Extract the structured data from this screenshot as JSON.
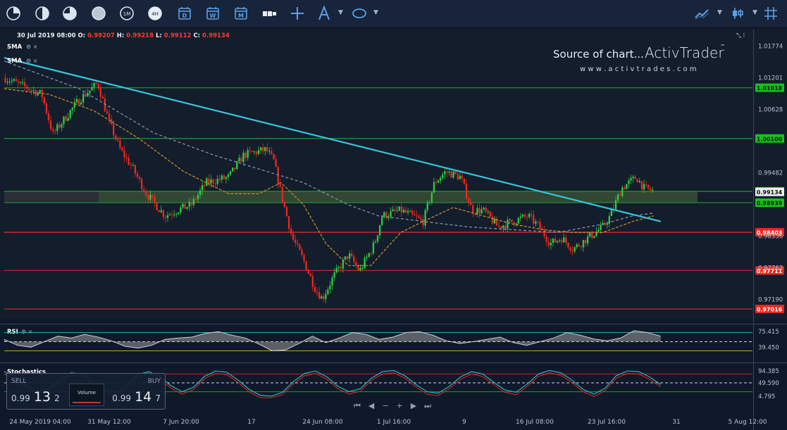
{
  "toolbar": {
    "left_tools": [
      {
        "icon": "clock-quarter-icon"
      },
      {
        "icon": "clock-half-icon"
      },
      {
        "icon": "clock-three-quarter-icon"
      },
      {
        "icon": "clock-full-icon"
      },
      {
        "icon": "timeframe-1m-icon",
        "label": "1M"
      },
      {
        "icon": "timeframe-4h-icon",
        "label": "4H"
      },
      {
        "icon": "daily-calendar-icon",
        "label": "D"
      },
      {
        "icon": "weekly-calendar-icon",
        "label": "W"
      },
      {
        "icon": "monthly-calendar-icon",
        "label": "M"
      },
      {
        "icon": "candle-type-icon"
      },
      {
        "icon": "crosshair-icon"
      },
      {
        "icon": "drawing-tools-icon"
      },
      {
        "icon": "ellipse-shape-icon"
      }
    ],
    "right_tools": [
      {
        "icon": "indicator-line-icon"
      },
      {
        "icon": "chart-type-icon"
      },
      {
        "icon": "grid-icon"
      }
    ]
  },
  "header": {
    "datetime": "30 Jul 2019 08:00",
    "open_label": "O:",
    "open": "0.99207",
    "high_label": "H:",
    "high": "0.99218",
    "low_label": "L:",
    "low": "0.99112",
    "close_label": "C:",
    "close": "0.99134"
  },
  "indicators_overlay": [
    "SMA",
    "SMA"
  ],
  "watermark": {
    "line1": "Source of chart...",
    "brand": "ActivTrader",
    "tm": "™",
    "url": "w w w . a c t i v t r a d e s . c o m"
  },
  "trade_panel": {
    "sell_label": "SELL",
    "sell_small": "0.99",
    "sell_big": "13",
    "sell_sup": "2",
    "buy_label": "BUY",
    "buy_small": "0.99",
    "buy_big": "14",
    "buy_sup": "7",
    "volume_label": "Volume"
  },
  "nav_buttons": [
    "⏮",
    "◀",
    "−",
    "+",
    "▶",
    "⏭"
  ],
  "colors": {
    "background": "#0f1929",
    "up": "#2ecc40",
    "down": "#e8281e",
    "trendline": "#35c6d9",
    "green_level": "#1e9b2e",
    "red_level": "#c0272d",
    "sma_fast": "#c08a2c",
    "sma_slow": "#8090b0",
    "rsi_line": "#cfcfcf",
    "stoch_k": "#2ab5c8"
  },
  "chart_data": [
    {
      "type": "candlestick",
      "title": "",
      "x_tick_labels": [
        "24 May 2019 04:00",
        "31 May 12:00",
        "7 Jun 20:00",
        "17",
        "24 Jun 08:00",
        "1 Jul 16:00",
        "9",
        "16 Jul 08:00",
        "23 Jul 16:00",
        "31",
        "5 Aug 12:00"
      ],
      "y_tick_labels": [
        "1.01774",
        "1.01201",
        "1.00628",
        "0.99482",
        "0.98336",
        "0.97763",
        "0.97190"
      ],
      "ylim": [
        0.9685,
        1.0202
      ],
      "horizontal_levels": [
        {
          "value": 1.01018,
          "label": "1.01018",
          "color": "green"
        },
        {
          "value": 1.001,
          "label": "1.00100",
          "color": "green"
        },
        {
          "value": 0.99144,
          "label": "0.99144",
          "color": "green"
        },
        {
          "value": 0.98939,
          "label": "0.98939",
          "color": "green"
        },
        {
          "value": 0.98403,
          "label": "0.98403",
          "color": "red"
        },
        {
          "value": 0.97711,
          "label": "0.97711",
          "color": "red"
        },
        {
          "value": 0.97016,
          "label": "0.97016",
          "color": "red"
        }
      ],
      "zone": {
        "from": 0.98939,
        "to": 0.99144
      },
      "trendline": [
        {
          "x": 0.0,
          "y": 1.0156
        },
        {
          "x": 0.868,
          "y": 0.9865
        }
      ],
      "close_path": [
        [
          0.0,
          1.012
        ],
        [
          0.05,
          1.009
        ],
        [
          0.065,
          1.0018
        ],
        [
          0.1,
          1.008
        ],
        [
          0.125,
          1.011
        ],
        [
          0.14,
          1.004
        ],
        [
          0.155,
          0.999
        ],
        [
          0.17,
          0.996
        ],
        [
          0.19,
          0.991
        ],
        [
          0.215,
          0.987
        ],
        [
          0.23,
          0.988
        ],
        [
          0.25,
          0.989
        ],
        [
          0.27,
          0.993
        ],
        [
          0.3,
          0.994
        ],
        [
          0.32,
          0.998
        ],
        [
          0.35,
          0.999
        ],
        [
          0.36,
          0.997
        ],
        [
          0.37,
          0.991
        ],
        [
          0.385,
          0.983
        ],
        [
          0.4,
          0.979
        ],
        [
          0.415,
          0.974
        ],
        [
          0.425,
          0.972
        ],
        [
          0.44,
          0.976
        ],
        [
          0.46,
          0.98
        ],
        [
          0.475,
          0.977
        ],
        [
          0.495,
          0.982
        ],
        [
          0.505,
          0.987
        ],
        [
          0.53,
          0.988
        ],
        [
          0.56,
          0.986
        ],
        [
          0.575,
          0.993
        ],
        [
          0.59,
          0.995
        ],
        [
          0.61,
          0.994
        ],
        [
          0.625,
          0.988
        ],
        [
          0.64,
          0.988
        ],
        [
          0.66,
          0.985
        ],
        [
          0.68,
          0.986
        ],
        [
          0.7,
          0.987
        ],
        [
          0.715,
          0.985
        ],
        [
          0.73,
          0.982
        ],
        [
          0.745,
          0.983
        ],
        [
          0.76,
          0.981
        ],
        [
          0.78,
          0.983
        ],
        [
          0.8,
          0.985
        ],
        [
          0.81,
          0.987
        ],
        [
          0.825,
          0.992
        ],
        [
          0.845,
          0.994
        ],
        [
          0.855,
          0.992
        ],
        [
          0.868,
          0.9915
        ]
      ],
      "sma_fast": [
        [
          0.0,
          1.01
        ],
        [
          0.06,
          1.009
        ],
        [
          0.12,
          1.006
        ],
        [
          0.18,
          1.001
        ],
        [
          0.24,
          0.995
        ],
        [
          0.3,
          0.991
        ],
        [
          0.34,
          0.991
        ],
        [
          0.37,
          0.993
        ],
        [
          0.4,
          0.989
        ],
        [
          0.43,
          0.982
        ],
        [
          0.46,
          0.978
        ],
        [
          0.49,
          0.978
        ],
        [
          0.51,
          0.981
        ],
        [
          0.53,
          0.984
        ],
        [
          0.56,
          0.986
        ],
        [
          0.6,
          0.9885
        ],
        [
          0.64,
          0.987
        ],
        [
          0.68,
          0.9855
        ],
        [
          0.72,
          0.9845
        ],
        [
          0.76,
          0.984
        ],
        [
          0.8,
          0.984
        ],
        [
          0.84,
          0.986
        ],
        [
          0.868,
          0.987
        ]
      ],
      "sma_slow": [
        [
          0.0,
          1.015
        ],
        [
          0.1,
          1.01
        ],
        [
          0.2,
          1.002
        ],
        [
          0.28,
          0.998
        ],
        [
          0.34,
          0.9955
        ],
        [
          0.4,
          0.993
        ],
        [
          0.46,
          0.989
        ],
        [
          0.5,
          0.987
        ],
        [
          0.56,
          0.986
        ],
        [
          0.62,
          0.985
        ],
        [
          0.68,
          0.9845
        ],
        [
          0.74,
          0.984
        ],
        [
          0.8,
          0.9855
        ],
        [
          0.84,
          0.987
        ],
        [
          0.868,
          0.9875
        ]
      ],
      "last_price": 0.99134
    },
    {
      "type": "line",
      "name": "RSI",
      "y_tick_labels": [
        "75.415",
        "39.450"
      ],
      "upper_level": 70,
      "lower_level": 30,
      "mid_level": 50,
      "values": [
        55,
        42,
        38,
        50,
        62,
        58,
        66,
        60,
        52,
        40,
        36,
        42,
        55,
        58,
        60,
        68,
        72,
        64,
        58,
        45,
        30,
        32,
        46,
        62,
        48,
        58,
        70,
        66,
        55,
        60,
        70,
        72,
        64,
        52,
        46,
        50,
        55,
        60,
        48,
        42,
        50,
        58,
        70,
        64,
        56,
        52,
        58,
        74,
        70,
        62
      ]
    },
    {
      "type": "line",
      "name": "Stochastics",
      "y_tick_labels": [
        "94.385",
        "49.590",
        "4.795"
      ],
      "upper_level": 80,
      "lower_level": 20,
      "mid_level": 50,
      "values": [
        88,
        72,
        40,
        22,
        30,
        62,
        84,
        80,
        55,
        28,
        18,
        40,
        78,
        88,
        70,
        40,
        20,
        35,
        72,
        90,
        86,
        60,
        28,
        8,
        5,
        18,
        55,
        82,
        90,
        70,
        38,
        20,
        30,
        66,
        88,
        92,
        74,
        44,
        20,
        15,
        38,
        70,
        88,
        80,
        52,
        26,
        18,
        46,
        80,
        92,
        84,
        60,
        28,
        12,
        32,
        74,
        90,
        88,
        70,
        44
      ]
    }
  ]
}
